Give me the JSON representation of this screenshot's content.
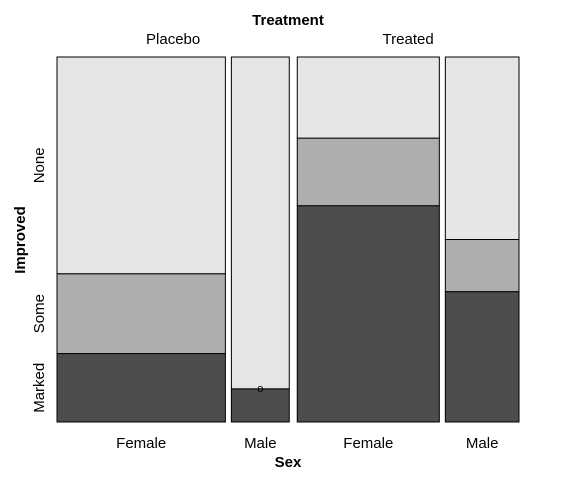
{
  "chart_data": {
    "type": "mosaic",
    "title": "",
    "column_variable": "Treatment",
    "x_variable": "Sex",
    "y_variable": "Improved",
    "treatment_levels": [
      "Placebo",
      "Treated"
    ],
    "sex_levels": [
      "Female",
      "Male"
    ],
    "improved_levels": [
      "Marked",
      "Some",
      "None"
    ],
    "improved_colors": {
      "Marked": "#4d4d4d",
      "Some": "#aeaeae",
      "None": "#e6e6e6"
    },
    "zero_cell_marker": "o",
    "counts": {
      "Placebo": {
        "Female": {
          "Marked": 6,
          "Some": 7,
          "None": 19
        },
        "Male": {
          "Marked": 1,
          "Some": 0,
          "None": 10
        }
      },
      "Treated": {
        "Female": {
          "Marked": 16,
          "Some": 5,
          "None": 6
        },
        "Male": {
          "Marked": 5,
          "Some": 2,
          "None": 7
        }
      }
    }
  }
}
